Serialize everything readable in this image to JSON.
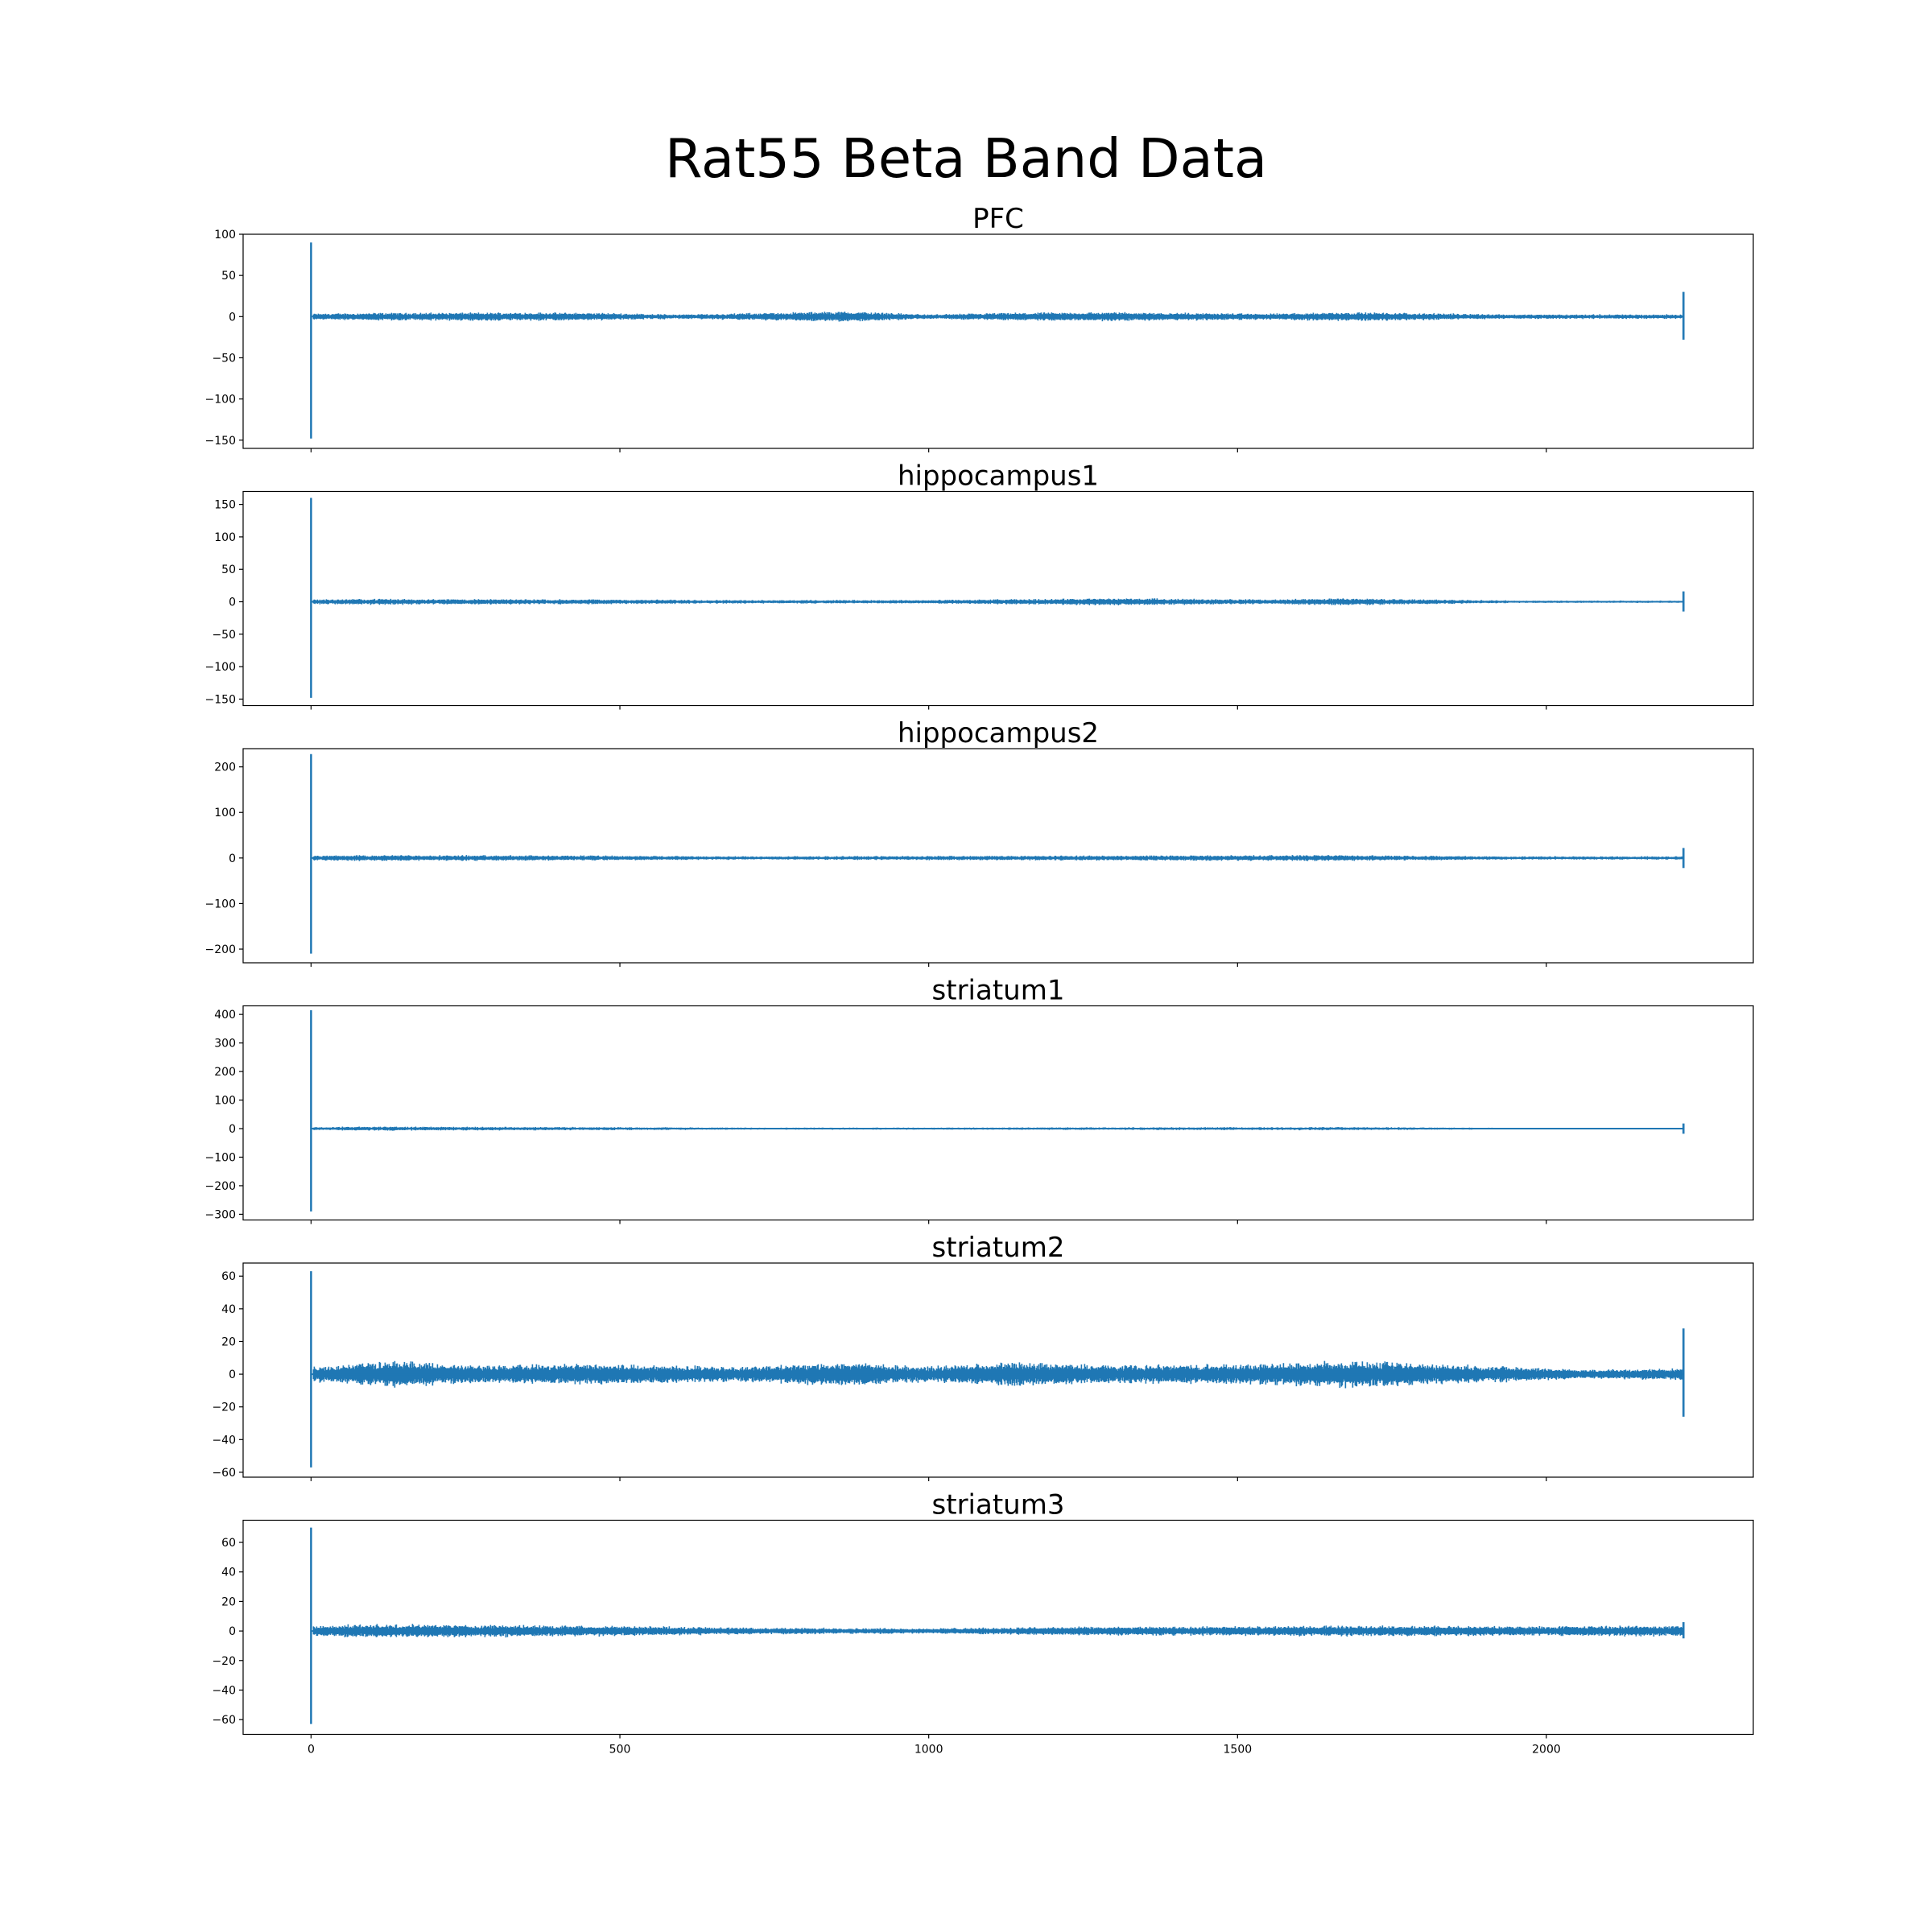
{
  "figure": {
    "title": "Rat55 Beta Band Data",
    "line_color": "#1f77b4"
  },
  "chart_data": [
    {
      "type": "line",
      "title": "PFC",
      "xlim": [
        -110,
        2335
      ],
      "ylim": [
        -160,
        100
      ],
      "yticks": [
        100,
        50,
        0,
        -50,
        -100,
        -150
      ],
      "xticks": [
        0,
        500,
        1000,
        1500,
        2000
      ],
      "show_xticklabels": false,
      "series": [
        {
          "spike_start": {
            "x": 0,
            "y_min": -148,
            "y_max": 90
          },
          "spike_end": {
            "x": 2222,
            "y_min": -28,
            "y_max": 30
          },
          "x_range": [
            0,
            2222
          ],
          "baseline": 0,
          "noise_amplitude_by_x": [
            [
              0,
              4
            ],
            [
              100,
              5
            ],
            [
              350,
              5.5
            ],
            [
              460,
              5
            ],
            [
              600,
              3
            ],
            [
              870,
              7
            ],
            [
              1000,
              3
            ],
            [
              1130,
              5
            ],
            [
              1300,
              6
            ],
            [
              1550,
              4
            ],
            [
              1670,
              6
            ],
            [
              1950,
              3
            ],
            [
              2222,
              3
            ]
          ]
        }
      ]
    },
    {
      "type": "line",
      "title": "hippocampus1",
      "xlim": [
        -110,
        2335
      ],
      "ylim": [
        -160,
        170
      ],
      "yticks": [
        150,
        100,
        50,
        0,
        -50,
        -100,
        -150
      ],
      "xticks": [
        0,
        500,
        1000,
        1500,
        2000
      ],
      "show_xticklabels": false,
      "series": [
        {
          "spike_start": {
            "x": 0,
            "y_min": -148,
            "y_max": 160
          },
          "spike_end": {
            "x": 2222,
            "y_min": -15,
            "y_max": 16
          },
          "x_range": [
            0,
            2222
          ],
          "baseline": 0,
          "noise_amplitude_by_x": [
            [
              0,
              4
            ],
            [
              100,
              5
            ],
            [
              460,
              4
            ],
            [
              700,
              3
            ],
            [
              1000,
              3
            ],
            [
              1300,
              6
            ],
            [
              1550,
              4
            ],
            [
              1670,
              6
            ],
            [
              1950,
              2
            ],
            [
              2222,
              2
            ]
          ]
        }
      ]
    },
    {
      "type": "line",
      "title": "hippocampus2",
      "xlim": [
        -110,
        2335
      ],
      "ylim": [
        -230,
        240
      ],
      "yticks": [
        200,
        100,
        0,
        -100,
        -200
      ],
      "xticks": [
        0,
        500,
        1000,
        1500,
        2000
      ],
      "show_xticklabels": false,
      "series": [
        {
          "spike_start": {
            "x": 0,
            "y_min": -210,
            "y_max": 228
          },
          "spike_end": {
            "x": 2222,
            "y_min": -22,
            "y_max": 22
          },
          "x_range": [
            0,
            2222
          ],
          "baseline": 0,
          "noise_amplitude_by_x": [
            [
              0,
              6
            ],
            [
              100,
              7
            ],
            [
              460,
              6
            ],
            [
              700,
              4
            ],
            [
              1000,
              5
            ],
            [
              1300,
              6
            ],
            [
              1670,
              7
            ],
            [
              1950,
              4
            ],
            [
              2222,
              4
            ]
          ]
        }
      ]
    },
    {
      "type": "line",
      "title": "striatum1",
      "xlim": [
        -110,
        2335
      ],
      "ylim": [
        -320,
        430
      ],
      "yticks": [
        400,
        300,
        200,
        100,
        0,
        -100,
        -200,
        -300
      ],
      "xticks": [
        0,
        500,
        1000,
        1500,
        2000
      ],
      "show_xticklabels": false,
      "series": [
        {
          "spike_start": {
            "x": 0,
            "y_min": -290,
            "y_max": 415
          },
          "spike_end": {
            "x": 2222,
            "y_min": -18,
            "y_max": 18
          },
          "x_range": [
            0,
            2222
          ],
          "baseline": 0,
          "noise_amplitude_by_x": [
            [
              0,
              6
            ],
            [
              100,
              8
            ],
            [
              460,
              6
            ],
            [
              700,
              4
            ],
            [
              1000,
              4
            ],
            [
              1300,
              5
            ],
            [
              1670,
              6
            ],
            [
              1950,
              3
            ],
            [
              2222,
              3
            ]
          ]
        }
      ]
    },
    {
      "type": "line",
      "title": "striatum2",
      "xlim": [
        -110,
        2335
      ],
      "ylim": [
        -63,
        68
      ],
      "yticks": [
        60,
        40,
        20,
        0,
        -20,
        -40,
        -60
      ],
      "xticks": [
        0,
        500,
        1000,
        1500,
        2000
      ],
      "show_xticklabels": false,
      "series": [
        {
          "spike_start": {
            "x": 0,
            "y_min": -57,
            "y_max": 63
          },
          "spike_end": {
            "x": 2222,
            "y_min": -26,
            "y_max": 28
          },
          "x_range": [
            0,
            2222
          ],
          "baseline": 0,
          "noise_amplitude_by_x": [
            [
              0,
              5
            ],
            [
              130,
              9
            ],
            [
              250,
              6
            ],
            [
              460,
              7
            ],
            [
              700,
              5
            ],
            [
              870,
              8
            ],
            [
              1000,
              5
            ],
            [
              1130,
              8
            ],
            [
              1300,
              6
            ],
            [
              1550,
              7
            ],
            [
              1670,
              9
            ],
            [
              1800,
              7
            ],
            [
              1950,
              5
            ],
            [
              2080,
              3
            ],
            [
              2222,
              4
            ]
          ]
        }
      ]
    },
    {
      "type": "line",
      "title": "striatum3",
      "xlim": [
        -110,
        2335
      ],
      "ylim": [
        -70,
        75
      ],
      "yticks": [
        60,
        40,
        20,
        0,
        -20,
        -40,
        -60
      ],
      "xticks": [
        0,
        500,
        1000,
        1500,
        2000
      ],
      "show_xticklabels": true,
      "series": [
        {
          "spike_start": {
            "x": 0,
            "y_min": -63,
            "y_max": 70
          },
          "spike_end": {
            "x": 2222,
            "y_min": -5,
            "y_max": 6
          },
          "x_range": [
            0,
            2222
          ],
          "baseline": 0,
          "noise_amplitude_by_x": [
            [
              0,
              4
            ],
            [
              100,
              5
            ],
            [
              460,
              4
            ],
            [
              700,
              2.5
            ],
            [
              1000,
              2
            ],
            [
              1200,
              3
            ],
            [
              1550,
              3.5
            ],
            [
              1670,
              4
            ],
            [
              1950,
              3.5
            ],
            [
              2222,
              4
            ]
          ]
        }
      ]
    }
  ]
}
